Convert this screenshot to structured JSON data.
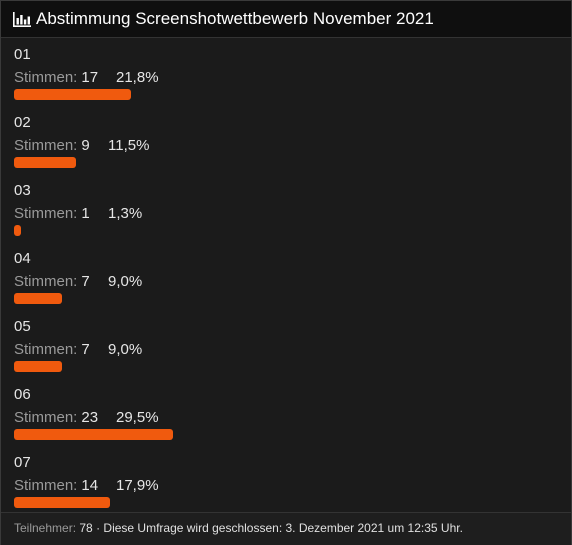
{
  "title": "Abstimmung Screenshotwettbewerb November 2021",
  "votes_label": "Stimmen:",
  "options": [
    {
      "label": "01",
      "votes": "17",
      "percent": "21,8%",
      "share": 0.218
    },
    {
      "label": "02",
      "votes": "9",
      "percent": "11,5%",
      "share": 0.115
    },
    {
      "label": "03",
      "votes": "1",
      "percent": "1,3%",
      "share": 0.013
    },
    {
      "label": "04",
      "votes": "7",
      "percent": "9,0%",
      "share": 0.09
    },
    {
      "label": "05",
      "votes": "7",
      "percent": "9,0%",
      "share": 0.09
    },
    {
      "label": "06",
      "votes": "23",
      "percent": "29,5%",
      "share": 0.295
    },
    {
      "label": "07",
      "votes": "14",
      "percent": "17,9%",
      "share": 0.179
    }
  ],
  "footer": {
    "participants_label": "Teilnehmer:",
    "participants": "78",
    "closing_text": "· Diese Umfrage wird geschlossen: 3. Dezember 2021 um 12:35 Uhr."
  },
  "colors": {
    "bar": "#f05a0e",
    "background": "#1b1b1b"
  }
}
